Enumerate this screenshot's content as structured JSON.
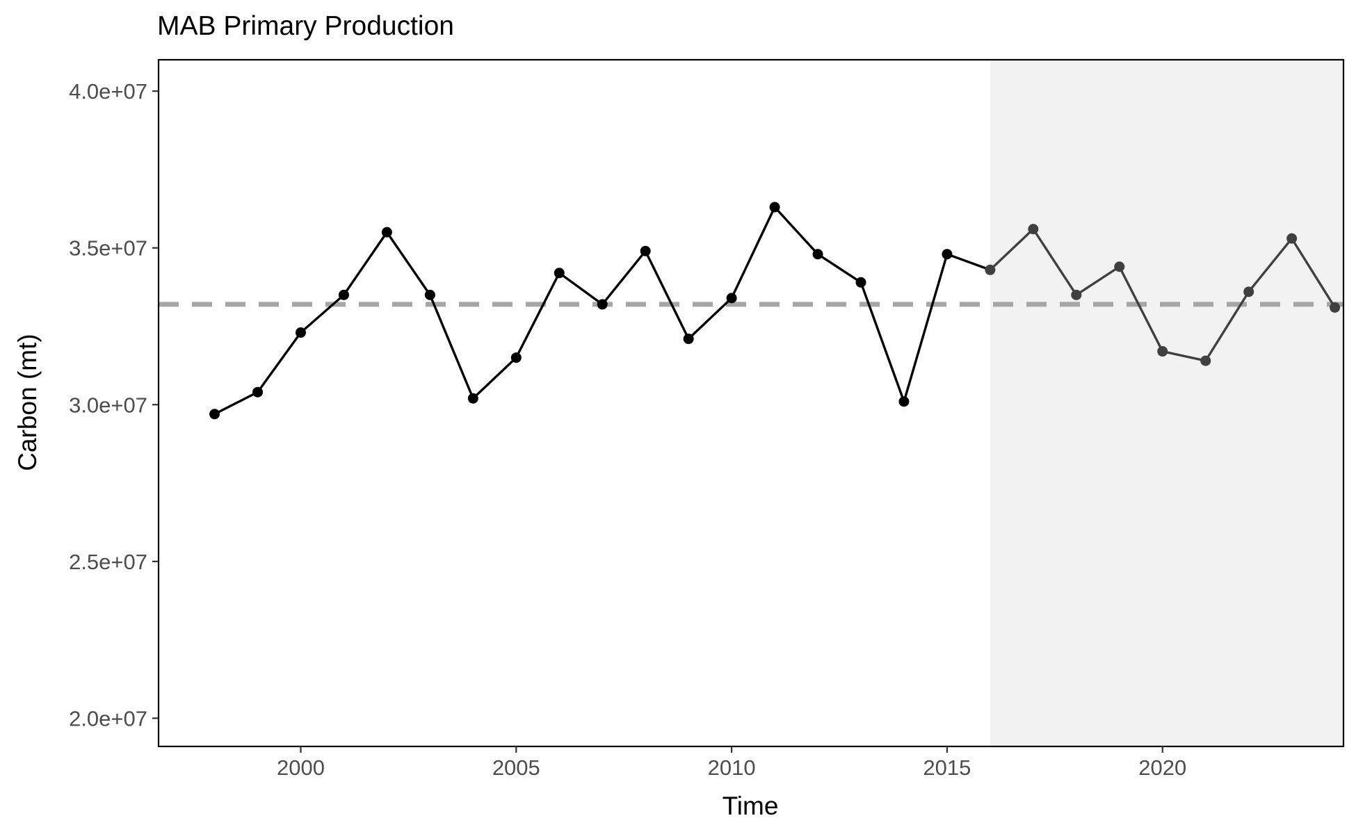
{
  "chart_data": {
    "type": "line",
    "title": "MAB Primary Production",
    "xlabel": "Time",
    "ylabel": "Carbon (mt)",
    "xlim": [
      1996.7,
      2024.2
    ],
    "ylim": [
      19100000,
      41000000
    ],
    "x_ticks": [
      2000,
      2005,
      2010,
      2015,
      2020
    ],
    "y_ticks": [
      20000000,
      25000000,
      30000000,
      35000000,
      40000000
    ],
    "y_tick_labels": [
      "2.0e+07",
      "2.5e+07",
      "3.0e+07",
      "3.5e+07",
      "4.0e+07"
    ],
    "mean_line": {
      "value": 33200000,
      "style": "dashed",
      "color": "#a6a6a6"
    },
    "highlight_region": {
      "x_start": 2016,
      "x_end": 2024.2,
      "color": "#f2f2f2"
    },
    "grid": false,
    "legend": "none",
    "series": [
      {
        "x": [
          1998,
          1999,
          2000,
          2001,
          2002,
          2003,
          2004,
          2005,
          2006,
          2007,
          2008,
          2009,
          2010,
          2011,
          2012,
          2013,
          2014,
          2015,
          2016,
          2017,
          2018,
          2019,
          2020,
          2021,
          2022,
          2023,
          2024
        ],
        "values": [
          29700000,
          30400000,
          32300000,
          33500000,
          35500000,
          33500000,
          30200000,
          31500000,
          34200000,
          33200000,
          34900000,
          32100000,
          33400000,
          36300000,
          34800000,
          33900000,
          30100000,
          34800000,
          34300000,
          35600000,
          33500000,
          34400000,
          31700000,
          31400000,
          33600000,
          35300000,
          33100000
        ],
        "color": "#000000",
        "recent_color": "#404040",
        "recent_from": 2016
      }
    ]
  }
}
